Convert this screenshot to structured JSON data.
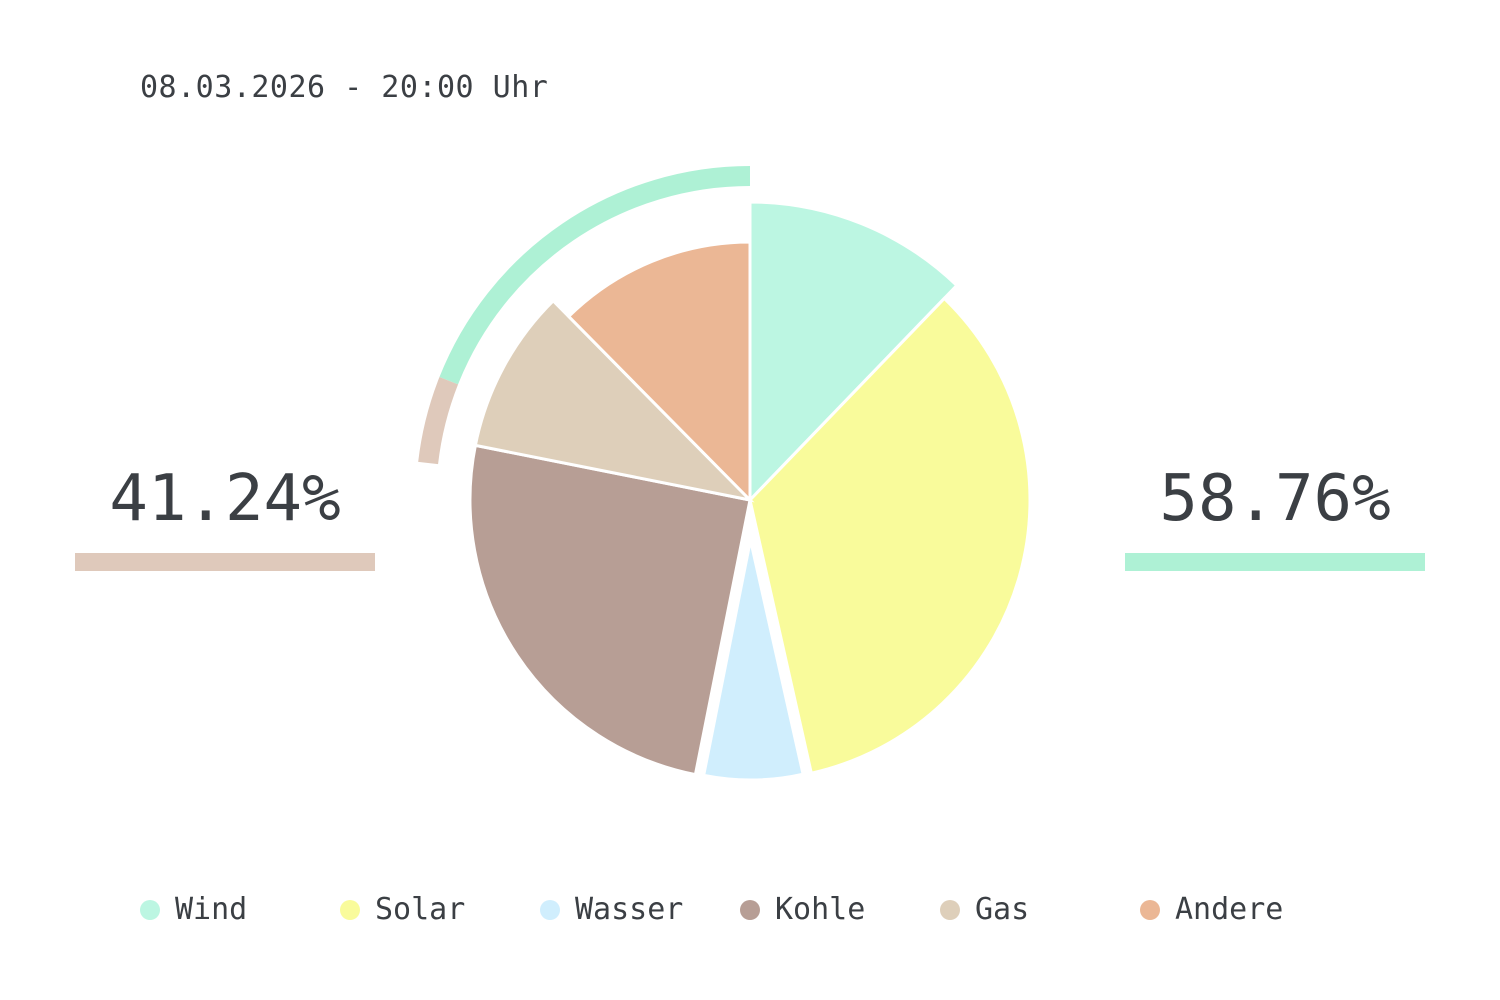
{
  "timestamp": "08.03.2026 - 20:00 Uhr",
  "summary": {
    "left": {
      "value": "41.24%",
      "color": "#dfc9bb"
    },
    "right": {
      "value": "58.76%",
      "color": "#aef1d5"
    }
  },
  "chart_data": {
    "type": "pie",
    "categories": [
      "Wind",
      "Solar",
      "Wasser",
      "Kohle",
      "Gas",
      "Andere"
    ],
    "values": [
      12.5,
      35.1,
      6.8,
      25.6,
      9.7,
      12.7
    ],
    "colors": [
      "#bcf6e2",
      "#f9fb9b",
      "#d0eefd",
      "#b79e95",
      "#decfba",
      "#ebb795"
    ],
    "exploded": [
      "Wasser"
    ],
    "highlighted": [
      "Wind"
    ],
    "outer_arcs": [
      {
        "label": "58.76%",
        "color": "#aef1d5"
      },
      {
        "label": "41.24%",
        "color": "#dfc9bb"
      }
    ],
    "legend_position": "bottom"
  },
  "legend": {
    "items": [
      {
        "label": "Wind",
        "color": "#bcf6e2"
      },
      {
        "label": "Solar",
        "color": "#f9fb9b"
      },
      {
        "label": "Wasser",
        "color": "#d0eefd"
      },
      {
        "label": "Kohle",
        "color": "#b79e95"
      },
      {
        "label": "Gas",
        "color": "#decfba"
      },
      {
        "label": "Andere",
        "color": "#ebb795"
      }
    ]
  }
}
